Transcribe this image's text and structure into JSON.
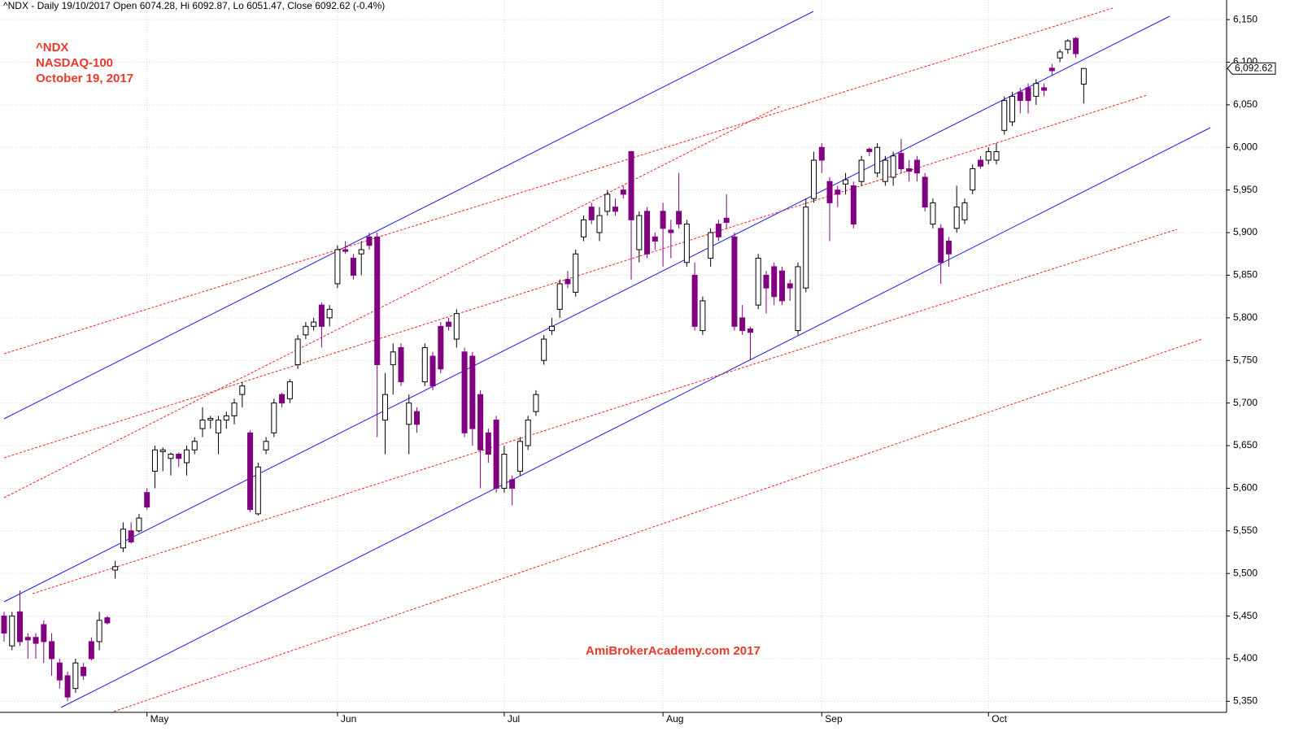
{
  "chart_data": {
    "type": "candlestick",
    "title": "^NDX - Daily 19/10/2017 Open 6074.28, Hi 6092.87, Lo 6051.47, Close 6092.62 (-0.4%)",
    "annotations": [
      "^NDX",
      "NASDAQ-100",
      "October 19, 2017"
    ],
    "watermark": "AmiBrokerAcademy.com  2017",
    "last_price_label": "6,092.62",
    "categories": [
      null,
      null,
      null,
      null,
      null,
      null,
      null,
      null,
      null,
      null,
      null,
      null,
      null,
      null,
      null,
      null,
      null,
      null,
      "May",
      null,
      null,
      null,
      null,
      null,
      null,
      null,
      null,
      null,
      null,
      null,
      null,
      null,
      null,
      null,
      null,
      null,
      null,
      null,
      null,
      null,
      null,
      null,
      "Jun",
      null,
      null,
      null,
      null,
      null,
      null,
      null,
      null,
      null,
      null,
      null,
      null,
      null,
      null,
      null,
      null,
      null,
      null,
      null,
      null,
      "Jul",
      null,
      null,
      null,
      null,
      null,
      null,
      null,
      null,
      null,
      null,
      null,
      null,
      null,
      null,
      null,
      null,
      null,
      null,
      null,
      "Aug",
      null,
      null,
      null,
      null,
      null,
      null,
      null,
      null,
      null,
      null,
      null,
      null,
      null,
      null,
      null,
      null,
      null,
      null,
      null,
      "Sep",
      null,
      null,
      null,
      null,
      null,
      null,
      null,
      null,
      null,
      null,
      null,
      null,
      null,
      null,
      null,
      null,
      null,
      null,
      null,
      null,
      "Oct",
      null,
      null,
      null,
      null,
      null,
      null,
      null,
      null,
      null,
      null,
      null,
      null
    ],
    "open": [
      5450,
      5415,
      5455,
      5425,
      5425,
      5440,
      5420,
      5395,
      5380,
      5365,
      5390,
      5420,
      5420,
      5448,
      5504,
      5530,
      5550,
      5550,
      5595,
      5620,
      5643,
      5635,
      5640,
      5630,
      5645,
      5670,
      5680,
      5665,
      5680,
      5685,
      5710,
      5665,
      5570,
      5645,
      5665,
      5710,
      5705,
      5745,
      5780,
      5790,
      5815,
      5800,
      5840,
      5880,
      5870,
      5875,
      5895,
      5895,
      5680,
      5745,
      5765,
      5675,
      5690,
      5725,
      5755,
      5790,
      5795,
      5775,
      5760,
      5755,
      5710,
      5665,
      5680,
      5600,
      5610,
      5620,
      5650,
      5690,
      5750,
      5785,
      5810,
      5845,
      5830,
      5895,
      5930,
      5900,
      5925,
      5930,
      5950,
      5995,
      5880,
      5925,
      5895,
      5925,
      5903,
      5925,
      5865,
      5850,
      5785,
      5870,
      5910,
      5917,
      5895,
      5800,
      5787,
      5815,
      5850,
      5860,
      5855,
      5840,
      5785,
      5835,
      5940,
      6000,
      5960,
      5950,
      5957,
      5955,
      5960,
      5998,
      5970,
      5960,
      5965,
      5993,
      5975,
      5985,
      5965,
      5910,
      5905,
      5890,
      5905,
      5915,
      5950,
      5985,
      5985,
      5985,
      6020,
      6030,
      6065,
      6070,
      6060,
      6070,
      6093,
      6105,
      6115,
      6128,
      6074.28
    ],
    "high": [
      5455,
      5455,
      5480,
      5430,
      5430,
      5445,
      5430,
      5400,
      5385,
      5400,
      5395,
      5425,
      5455,
      5450,
      5515,
      5560,
      5560,
      5570,
      5600,
      5650,
      5648,
      5642,
      5642,
      5650,
      5660,
      5695,
      5685,
      5685,
      5690,
      5705,
      5725,
      5668,
      5630,
      5660,
      5705,
      5712,
      5728,
      5780,
      5795,
      5800,
      5818,
      5815,
      5885,
      5890,
      5875,
      5890,
      5900,
      5900,
      5735,
      5770,
      5770,
      5710,
      5695,
      5770,
      5760,
      5795,
      5800,
      5810,
      5765,
      5760,
      5715,
      5670,
      5685,
      5650,
      5615,
      5660,
      5685,
      5715,
      5780,
      5800,
      5845,
      5855,
      5880,
      5920,
      5935,
      5930,
      5950,
      5940,
      5955,
      5996,
      5925,
      5930,
      5900,
      5935,
      5915,
      5970,
      5915,
      5865,
      5825,
      5905,
      5915,
      5945,
      5900,
      5815,
      5790,
      5875,
      5855,
      5865,
      5860,
      5845,
      5865,
      5940,
      5995,
      6005,
      5965,
      5955,
      5970,
      5960,
      5990,
      6000,
      6005,
      5990,
      5995,
      6010,
      5985,
      5990,
      5970,
      5940,
      5910,
      5895,
      5955,
      5940,
      5980,
      5990,
      6000,
      6005,
      6060,
      6065,
      6070,
      6075,
      6080,
      6075,
      6098,
      6115,
      6127,
      6130,
      6092.87
    ],
    "low": [
      5420,
      5410,
      5415,
      5400,
      5400,
      5395,
      5380,
      5365,
      5350,
      5360,
      5375,
      5398,
      5410,
      5440,
      5494,
      5525,
      5535,
      5548,
      5575,
      5600,
      5620,
      5615,
      5625,
      5615,
      5640,
      5660,
      5670,
      5640,
      5670,
      5675,
      5695,
      5572,
      5568,
      5640,
      5660,
      5695,
      5700,
      5740,
      5775,
      5785,
      5765,
      5790,
      5835,
      5875,
      5845,
      5850,
      5880,
      5660,
      5640,
      5710,
      5720,
      5640,
      5665,
      5720,
      5715,
      5735,
      5785,
      5765,
      5660,
      5650,
      5600,
      5630,
      5595,
      5595,
      5580,
      5615,
      5645,
      5685,
      5745,
      5780,
      5800,
      5835,
      5825,
      5890,
      5910,
      5890,
      5920,
      5920,
      5940,
      5845,
      5865,
      5870,
      5880,
      5860,
      5870,
      5905,
      5860,
      5785,
      5780,
      5860,
      5890,
      5905,
      5785,
      5780,
      5750,
      5810,
      5805,
      5815,
      5815,
      5820,
      5780,
      5830,
      5935,
      5970,
      5890,
      5930,
      5945,
      5905,
      5955,
      5990,
      5965,
      5955,
      5955,
      5970,
      5960,
      5960,
      5925,
      5905,
      5840,
      5860,
      5900,
      5910,
      5945,
      5975,
      5980,
      5980,
      6015,
      6025,
      6040,
      6040,
      6050,
      6060,
      6085,
      6100,
      6110,
      6105,
      6051.47
    ],
    "close": [
      5430,
      5450,
      5420,
      5422,
      5418,
      5420,
      5400,
      5375,
      5355,
      5395,
      5380,
      5400,
      5445,
      5442,
      5508,
      5552,
      5537,
      5565,
      5578,
      5645,
      5645,
      5640,
      5635,
      5645,
      5655,
      5680,
      5682,
      5680,
      5685,
      5700,
      5720,
      5575,
      5625,
      5655,
      5700,
      5700,
      5725,
      5775,
      5790,
      5795,
      5790,
      5810,
      5880,
      5878,
      5850,
      5880,
      5885,
      5745,
      5710,
      5760,
      5725,
      5700,
      5675,
      5765,
      5720,
      5740,
      5790,
      5805,
      5665,
      5670,
      5645,
      5640,
      5600,
      5640,
      5600,
      5655,
      5680,
      5710,
      5775,
      5790,
      5840,
      5840,
      5875,
      5915,
      5915,
      5920,
      5945,
      5925,
      5945,
      5915,
      5920,
      5875,
      5890,
      5905,
      5900,
      5910,
      5910,
      5790,
      5820,
      5900,
      5895,
      5912,
      5790,
      5785,
      5783,
      5870,
      5835,
      5825,
      5820,
      5835,
      5860,
      5930,
      5985,
      5985,
      5935,
      5945,
      5962,
      5910,
      5985,
      5995,
      6000,
      5985,
      5990,
      5975,
      5972,
      5970,
      5930,
      5935,
      5865,
      5875,
      5930,
      5935,
      5975,
      5978,
      5995,
      5995,
      6055,
      6060,
      6055,
      6055,
      6075,
      6067,
      6090,
      6112,
      6125,
      6110,
      6092.62
    ],
    "up_color": "#ffffff",
    "down_color": "#800080",
    "ylim": [
      5337,
      6173
    ],
    "yticks": [
      {
        "value": 5350,
        "label": "5,350"
      },
      {
        "value": 5400,
        "label": "5,400"
      },
      {
        "value": 5450,
        "label": "5,450"
      },
      {
        "value": 5500,
        "label": "5,500"
      },
      {
        "value": 5550,
        "label": "5,550"
      },
      {
        "value": 5600,
        "label": "5,600"
      },
      {
        "value": 5650,
        "label": "5,650"
      },
      {
        "value": 5700,
        "label": "5,700"
      },
      {
        "value": 5750,
        "label": "5,750"
      },
      {
        "value": 5800,
        "label": "5,800"
      },
      {
        "value": 5850,
        "label": "5,850"
      },
      {
        "value": 5900,
        "label": "5,900"
      },
      {
        "value": 5950,
        "label": "5,950"
      },
      {
        "value": 6000,
        "label": "6,000"
      },
      {
        "value": 6050,
        "label": "6,050"
      },
      {
        "value": 6100,
        "label": "6,100"
      },
      {
        "value": 6150,
        "label": "6,150"
      }
    ],
    "grid": true
  }
}
